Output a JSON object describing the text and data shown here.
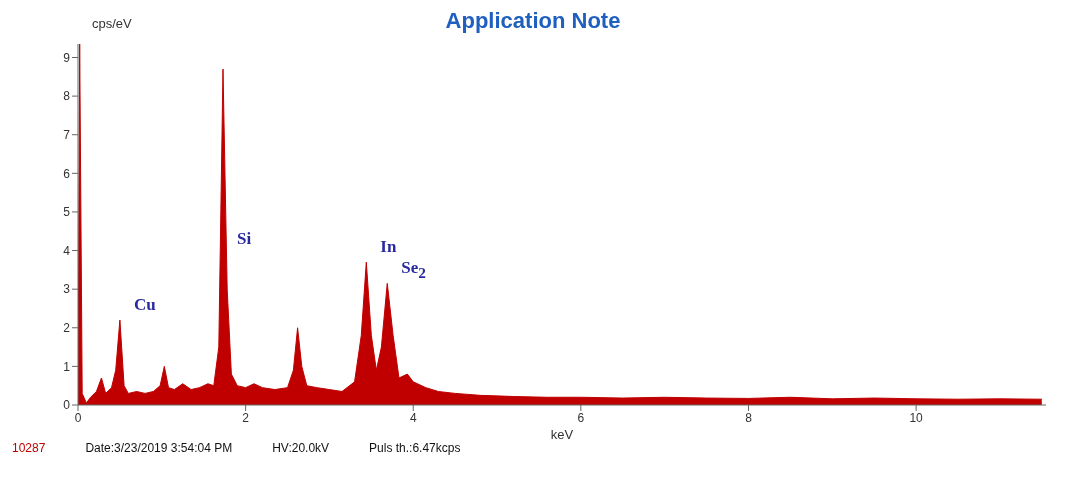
{
  "chart_data": {
    "type": "area",
    "title": "Application Note",
    "xlabel": "keV",
    "ylabel": "cps/eV",
    "x": [
      0,
      0.02,
      0.05,
      0.1,
      0.15,
      0.22,
      0.28,
      0.33,
      0.4,
      0.45,
      0.5,
      0.55,
      0.6,
      0.7,
      0.8,
      0.9,
      0.98,
      1.03,
      1.08,
      1.15,
      1.25,
      1.35,
      1.45,
      1.55,
      1.62,
      1.68,
      1.73,
      1.78,
      1.83,
      1.9,
      2.0,
      2.1,
      2.2,
      2.35,
      2.5,
      2.57,
      2.62,
      2.67,
      2.73,
      2.85,
      3.0,
      3.15,
      3.3,
      3.38,
      3.44,
      3.5,
      3.56,
      3.62,
      3.69,
      3.76,
      3.83,
      3.93,
      4.0,
      4.15,
      4.3,
      4.5,
      4.8,
      5.2,
      5.6,
      6.0,
      6.5,
      7.0,
      7.5,
      8.0,
      8.5,
      9.0,
      9.5,
      10.0,
      10.5,
      11.0,
      11.5
    ],
    "series": [
      {
        "color": "#c00000",
        "values": [
          0,
          9.35,
          0.3,
          0.05,
          0.2,
          0.35,
          0.7,
          0.3,
          0.45,
          0.9,
          2.2,
          0.5,
          0.3,
          0.35,
          0.3,
          0.35,
          0.5,
          1.0,
          0.45,
          0.4,
          0.55,
          0.4,
          0.45,
          0.55,
          0.5,
          1.5,
          8.7,
          3.0,
          0.8,
          0.5,
          0.45,
          0.55,
          0.45,
          0.4,
          0.45,
          0.9,
          2.0,
          1.0,
          0.5,
          0.45,
          0.4,
          0.35,
          0.6,
          1.8,
          3.7,
          1.8,
          0.9,
          1.5,
          3.15,
          1.8,
          0.7,
          0.8,
          0.6,
          0.45,
          0.35,
          0.3,
          0.25,
          0.22,
          0.2,
          0.2,
          0.18,
          0.2,
          0.18,
          0.17,
          0.2,
          0.16,
          0.18,
          0.16,
          0.15,
          0.16,
          0.15
        ]
      }
    ],
    "xlim": [
      0,
      11.55
    ],
    "ylim": [
      0,
      9.35
    ],
    "xticks": [
      0,
      2,
      4,
      6,
      8,
      10
    ],
    "yticks": [
      0,
      1,
      2,
      3,
      4,
      5,
      6,
      7,
      8,
      9
    ],
    "grid": false,
    "legend": false,
    "annotations": [
      {
        "text": "Cu",
        "x": 0.5,
        "y": 2.2
      },
      {
        "text": "Si",
        "x": 1.73,
        "y": 3.9
      },
      {
        "text": "In",
        "x": 3.44,
        "y": 3.7
      },
      {
        "text": "Se$_{2}$",
        "x": 3.69,
        "y": 3.15
      },
      "10287",
      "Date:3/23/2019 3:54:04 PM",
      "HV:20.0kV",
      "Puls th.:6.47kcps"
    ]
  }
}
